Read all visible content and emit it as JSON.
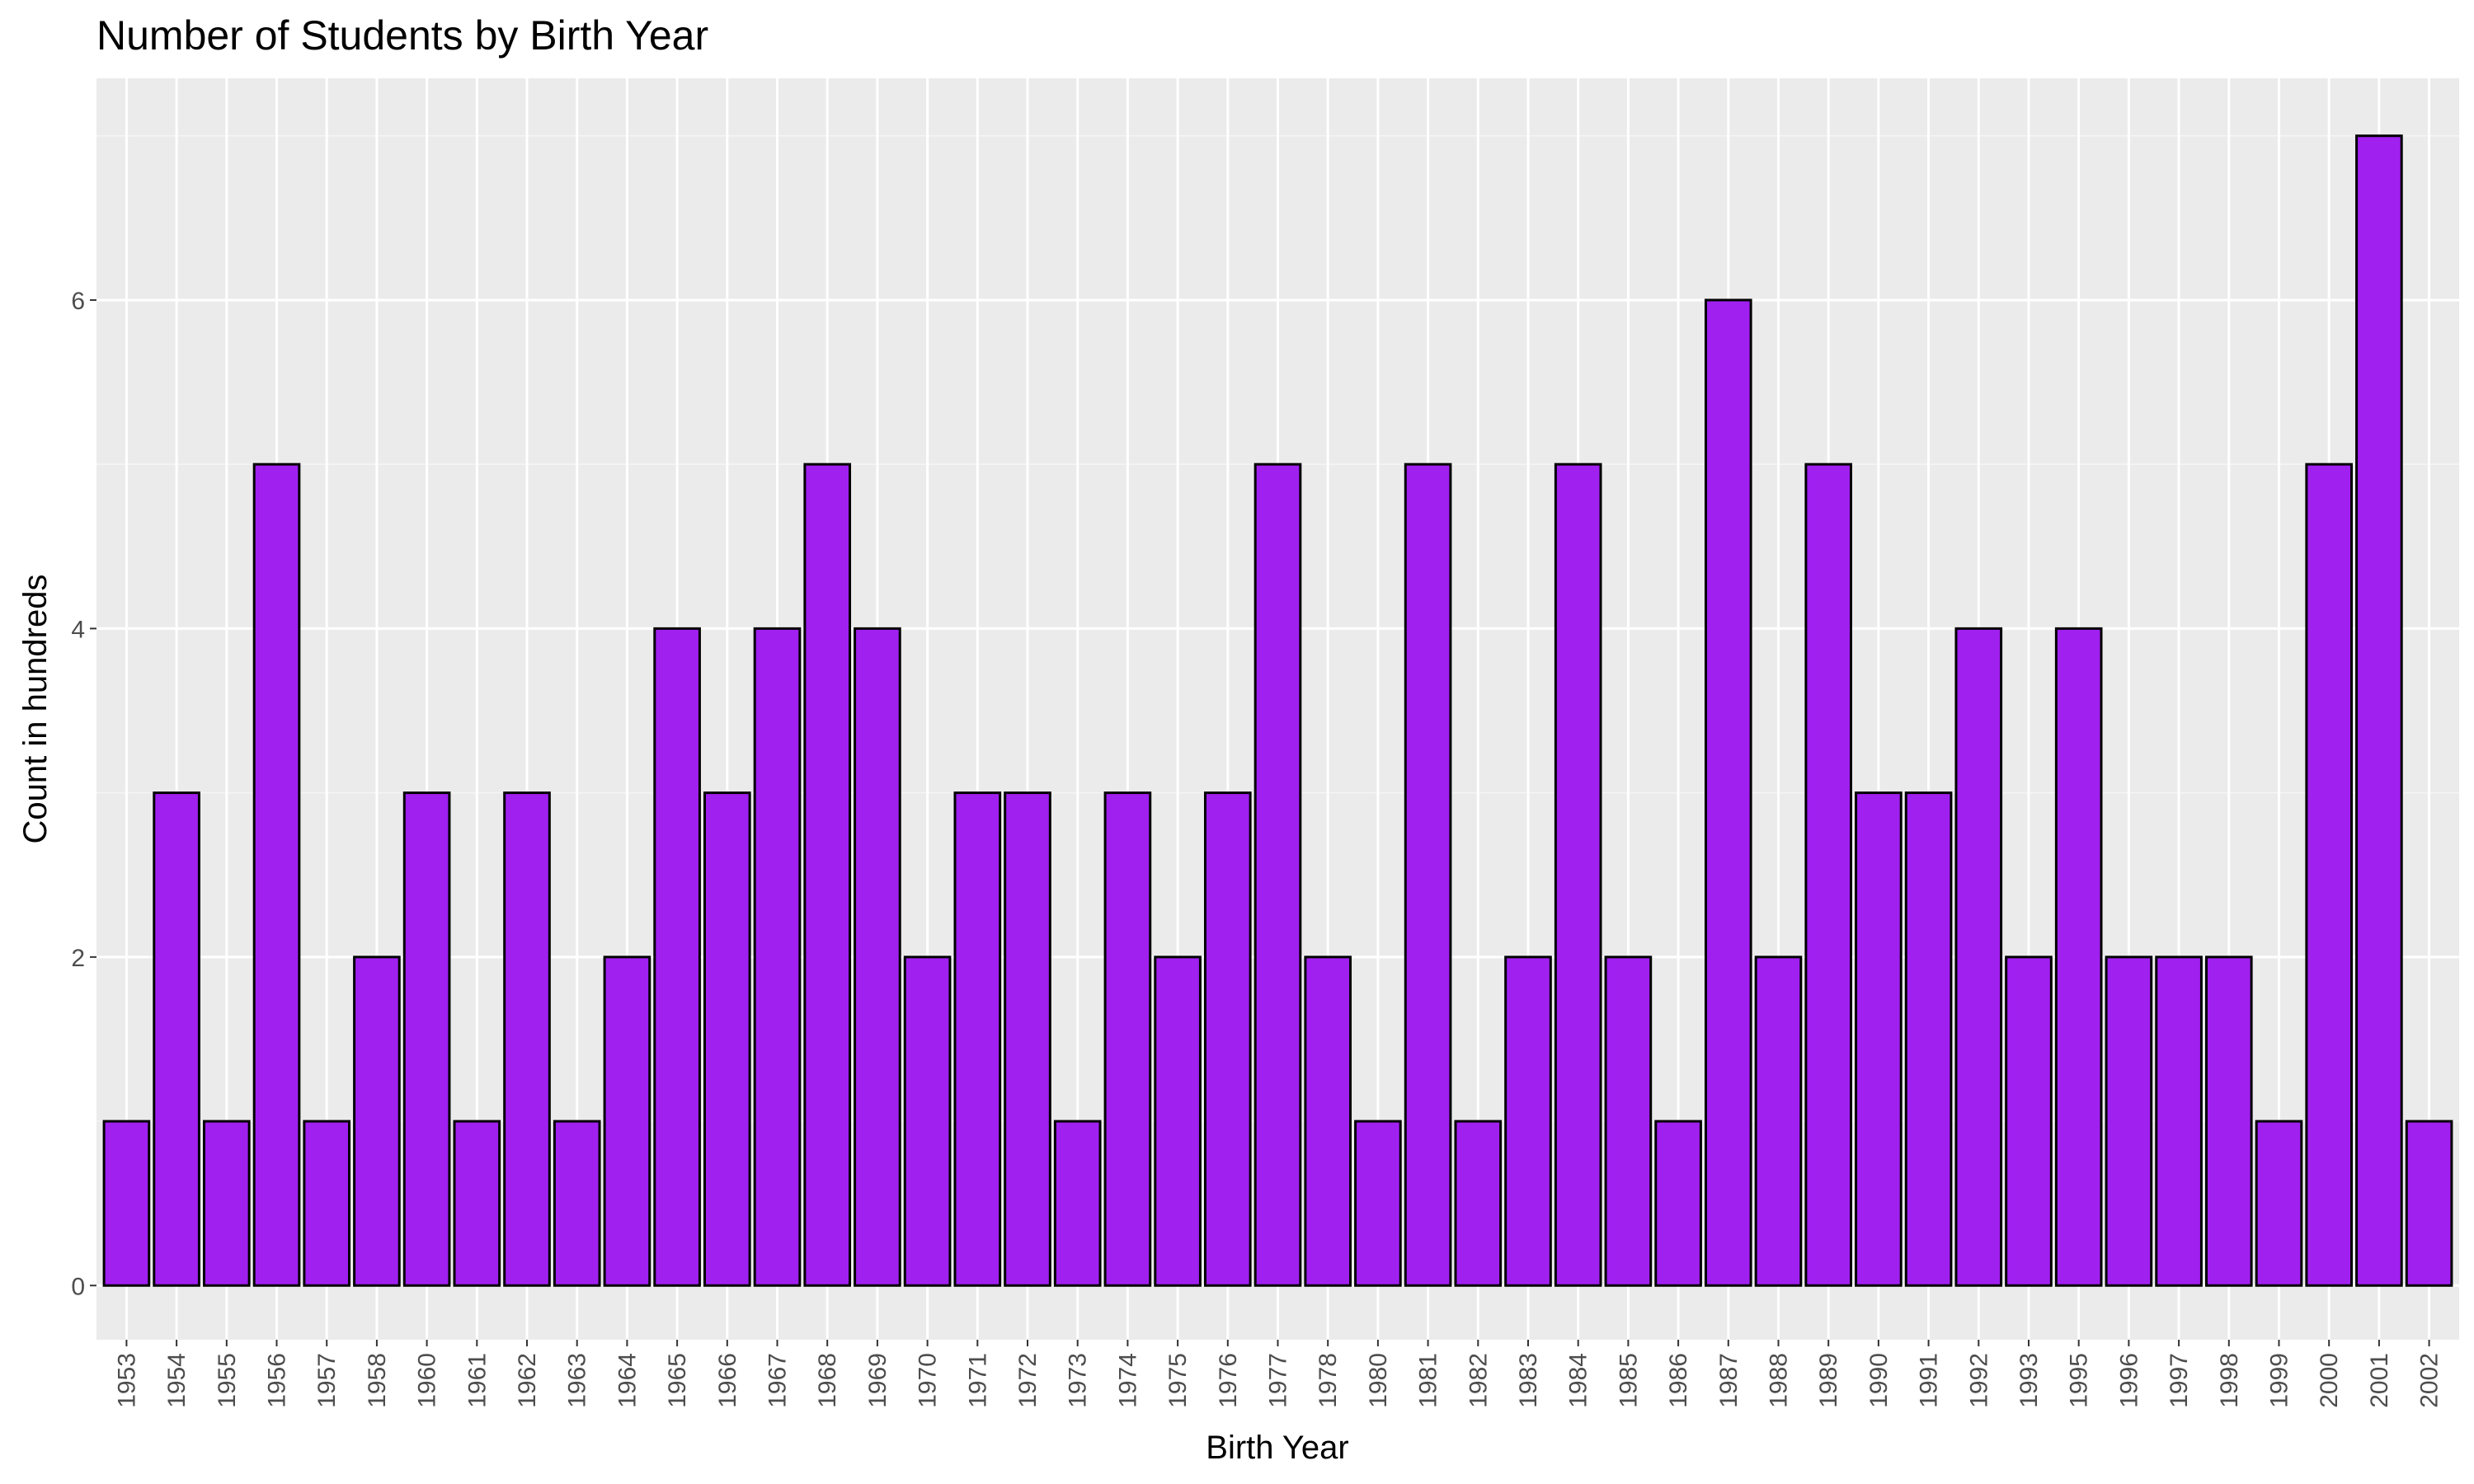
{
  "chart_data": {
    "type": "bar",
    "title": "Number of Students by Birth Year",
    "xlabel": "Birth Year",
    "ylabel": "Count in hundreds",
    "categories": [
      "1953",
      "1954",
      "1955",
      "1956",
      "1957",
      "1958",
      "1960",
      "1961",
      "1962",
      "1963",
      "1964",
      "1965",
      "1966",
      "1967",
      "1968",
      "1969",
      "1970",
      "1971",
      "1972",
      "1973",
      "1974",
      "1975",
      "1976",
      "1977",
      "1978",
      "1980",
      "1981",
      "1982",
      "1983",
      "1984",
      "1985",
      "1986",
      "1987",
      "1988",
      "1989",
      "1990",
      "1991",
      "1992",
      "1993",
      "1995",
      "1996",
      "1997",
      "1998",
      "1999",
      "2000",
      "2001",
      "2002"
    ],
    "values": [
      1,
      3,
      1,
      5,
      1,
      2,
      3,
      1,
      3,
      1,
      2,
      4,
      3,
      4,
      5,
      4,
      2,
      3,
      3,
      1,
      3,
      2,
      3,
      5,
      2,
      1,
      5,
      1,
      2,
      5,
      2,
      1,
      6,
      2,
      5,
      3,
      3,
      4,
      2,
      4,
      2,
      2,
      2,
      1,
      5,
      7,
      1
    ],
    "yticks": [
      0,
      2,
      4,
      6
    ],
    "ylim": [
      -0.33,
      7.35
    ],
    "grid": true,
    "colors": {
      "bar_fill": "#a020f0",
      "bar_stroke": "#000000",
      "panel_bg": "#ebebeb",
      "grid_major": "#ffffff",
      "grid_minor": "#f5f5f5"
    }
  }
}
